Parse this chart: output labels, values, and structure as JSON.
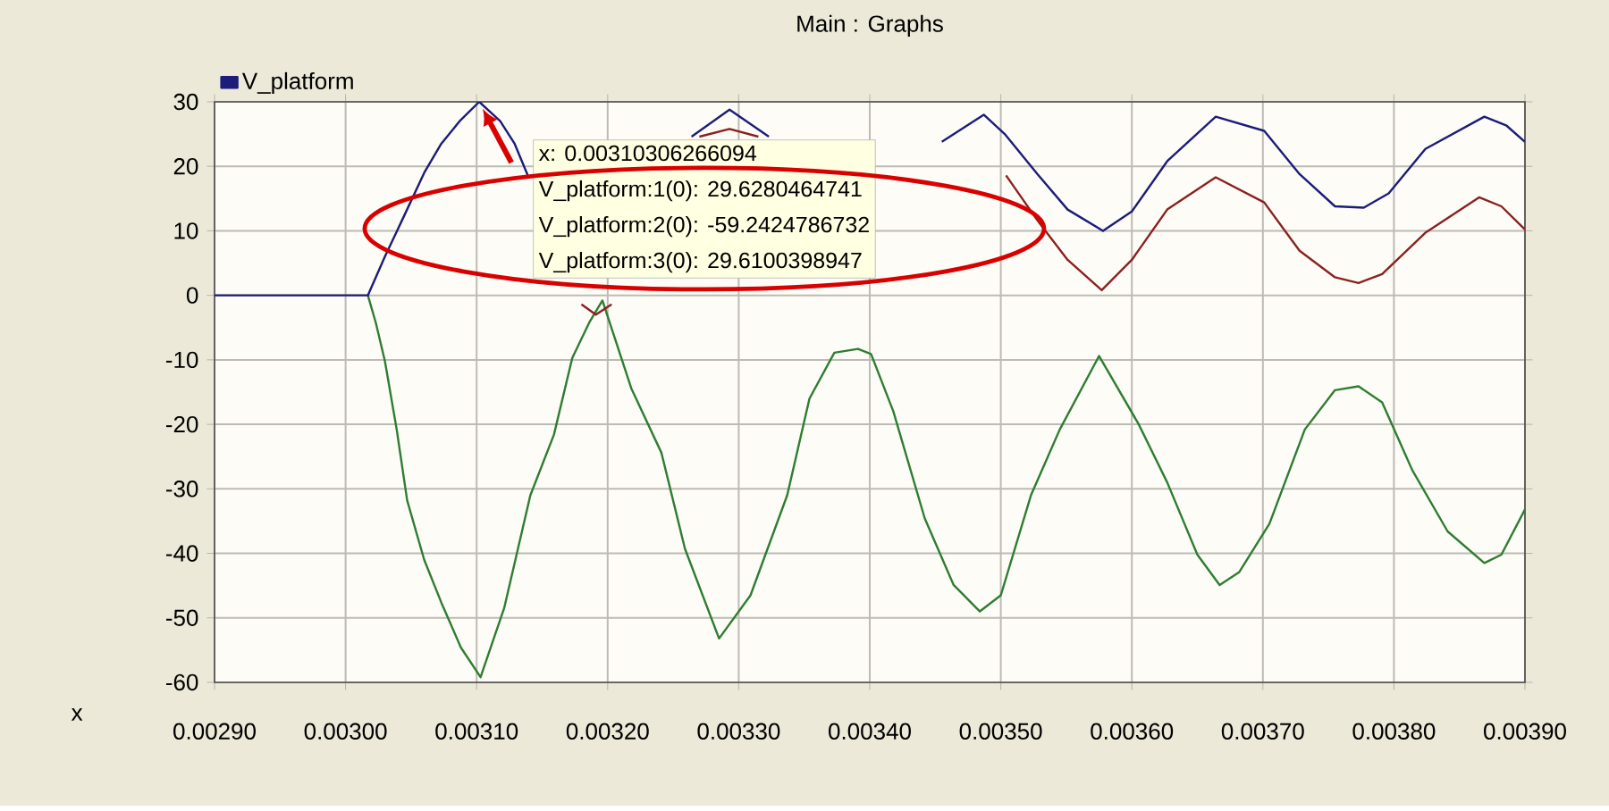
{
  "chart_data": {
    "type": "line",
    "title": "Main : Graphs",
    "xlabel": "x",
    "xlim": [
      0.0029,
      0.0039
    ],
    "xticks": [
      {
        "value": 0.0029,
        "label": "0.00290"
      },
      {
        "value": 0.003,
        "label": "0.00300"
      },
      {
        "value": 0.0031,
        "label": "0.00310"
      },
      {
        "value": 0.0032,
        "label": "0.00320"
      },
      {
        "value": 0.0033,
        "label": "0.00330"
      },
      {
        "value": 0.0034,
        "label": "0.00340"
      },
      {
        "value": 0.0035,
        "label": "0.00350"
      },
      {
        "value": 0.0036,
        "label": "0.00360"
      },
      {
        "value": 0.0037,
        "label": "0.00370"
      },
      {
        "value": 0.0038,
        "label": "0.00380"
      },
      {
        "value": 0.0039,
        "label": "0.00390"
      }
    ],
    "ylim": [
      -60,
      30
    ],
    "yticks": [
      -60,
      -50,
      -40,
      -30,
      -20,
      -10,
      0,
      10,
      20,
      30
    ],
    "grid": true,
    "legend": "top left",
    "marker": "none",
    "line_style": "solid",
    "annotations": [
      "x: 0.00310306266094",
      "V_platform:1(0): 29.6280464741",
      "V_platform:2(0): -59.2424786732",
      "V_platform:3(0): 29.6100398947"
    ],
    "series": [
      {
        "name": "V_platform",
        "color": "#1c1c7a",
        "x": [
          0.0029,
          0.003017,
          0.00303,
          0.003043,
          0.00306,
          0.003073,
          0.003087,
          0.003102,
          0.003118,
          0.003129,
          0.003139,
          0.00315,
          0.003264,
          0.003293,
          0.003323,
          0.0034,
          0.003455,
          0.003487,
          0.003503,
          0.003528,
          0.003551,
          0.003578,
          0.0036,
          0.003627,
          0.003664,
          0.003701,
          0.003728,
          0.003755,
          0.003777,
          0.003796,
          0.003824,
          0.003869,
          0.003886,
          0.0039
        ],
        "values": [
          0,
          0,
          6,
          11.6,
          19,
          23.5,
          27,
          30,
          27,
          23.5,
          18.6,
          null,
          24.6,
          28.8,
          24.6,
          null,
          23.8,
          28,
          25,
          18.8,
          13.3,
          10,
          13,
          20.8,
          27.7,
          25.5,
          18.8,
          13.8,
          13.6,
          15.8,
          22.7,
          27.7,
          26.3,
          23.8
        ]
      },
      {
        "color": "#8b2020",
        "x": [
          0.00318,
          0.003191,
          0.003203,
          0.00323,
          0.00327,
          0.003293,
          0.003315,
          0.0034,
          0.003504,
          0.003528,
          0.003551,
          0.003577,
          0.0036,
          0.003627,
          0.003664,
          0.003701,
          0.003728,
          0.003755,
          0.003773,
          0.003791,
          0.003824,
          0.003865,
          0.003882,
          0.0039
        ],
        "values": [
          -1.4,
          -3,
          -1.4,
          null,
          24.6,
          25.8,
          24.6,
          null,
          18.6,
          11.6,
          5.5,
          0.8,
          5.5,
          13.3,
          18.3,
          14.4,
          6.9,
          2.8,
          1.9,
          3.3,
          9.7,
          15.2,
          13.8,
          10.2
        ]
      },
      {
        "color": "#2e7d32",
        "x": [
          0.003017,
          0.003023,
          0.00303,
          0.003039,
          0.003047,
          0.00306,
          0.003073,
          0.003088,
          0.003103,
          0.003121,
          0.003141,
          0.003159,
          0.003173,
          0.003186,
          0.003196,
          0.003218,
          0.003241,
          0.003259,
          0.003285,
          0.003309,
          0.003337,
          0.003354,
          0.003373,
          0.003391,
          0.003401,
          0.003418,
          0.003442,
          0.003464,
          0.003484,
          0.0035,
          0.003523,
          0.003545,
          0.003575,
          0.003605,
          0.003627,
          0.00365,
          0.003667,
          0.003682,
          0.003705,
          0.003732,
          0.003755,
          0.003773,
          0.003791,
          0.003814,
          0.003841,
          0.003869,
          0.003882,
          0.0039
        ],
        "values": [
          0,
          -4.2,
          -10.2,
          -20.8,
          -31.8,
          -41,
          -47.6,
          -54.6,
          -59.2,
          -48.5,
          -31,
          -21.6,
          -9.7,
          -4.2,
          -0.8,
          -14.4,
          -24.4,
          -39.3,
          -53.2,
          -46.5,
          -31,
          -16,
          -8.9,
          -8.3,
          -9.1,
          -18,
          -34.6,
          -44.9,
          -49,
          -46.5,
          -31,
          -20.8,
          -9.4,
          -19.9,
          -29,
          -40.2,
          -44.9,
          -42.9,
          -35.4,
          -20.8,
          -14.7,
          -14.1,
          -16.6,
          -27.1,
          -36.6,
          -41.5,
          -40.2,
          -33.2
        ]
      }
    ]
  }
}
